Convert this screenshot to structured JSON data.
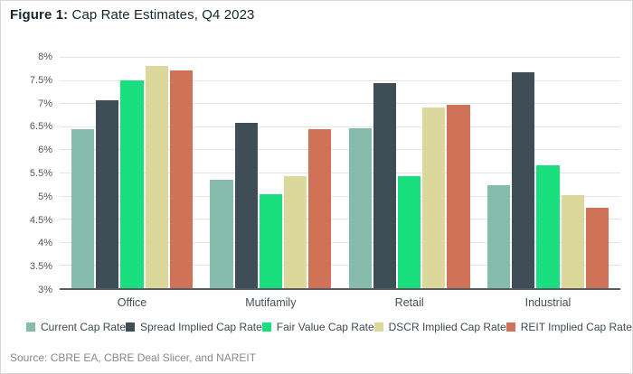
{
  "figure": {
    "title_prefix": "Figure 1:",
    "title_rest": " Cap Rate Estimates, Q4 2023",
    "source": "Source: CBRE EA, CBRE Deal Slicer, and NAREIT"
  },
  "chart_data": {
    "type": "bar",
    "title": "Figure 1: Cap Rate Estimates, Q4 2023",
    "xlabel": "",
    "ylabel": "",
    "categories": [
      "Office",
      "Mutifamily",
      "Retail",
      "Industrial"
    ],
    "series": [
      {
        "name": "Current Cap Rate",
        "color": "#85bcab",
        "values": [
          6.43,
          5.34,
          6.45,
          5.23
        ]
      },
      {
        "name": "Spread Implied Cap Rate",
        "color": "#3f4d56",
        "values": [
          7.06,
          6.57,
          7.43,
          7.67
        ]
      },
      {
        "name": "Fair Value Cap Rate",
        "color": "#19df7f",
        "values": [
          7.5,
          5.03,
          5.42,
          5.66
        ]
      },
      {
        "name": "DSCR Implied Cap Rate",
        "color": "#dcd79a",
        "values": [
          7.8,
          5.43,
          6.91,
          5.02
        ]
      },
      {
        "name": "REIT Implied Cap Rate",
        "color": "#cf7257",
        "values": [
          7.71,
          6.43,
          6.96,
          4.73
        ]
      }
    ],
    "ylim": [
      3,
      8
    ],
    "ytick_step": 0.5,
    "yticks_top_to_bottom": [
      "8%",
      "7.5%",
      "7%",
      "6.5%",
      "6%",
      "5.5%",
      "5%",
      "4.5%",
      "4%",
      "3.5%",
      "3%"
    ],
    "grid": true,
    "legend_position": "bottom",
    "source": "Source: CBRE EA, CBRE Deal Slicer, and NAREIT"
  }
}
